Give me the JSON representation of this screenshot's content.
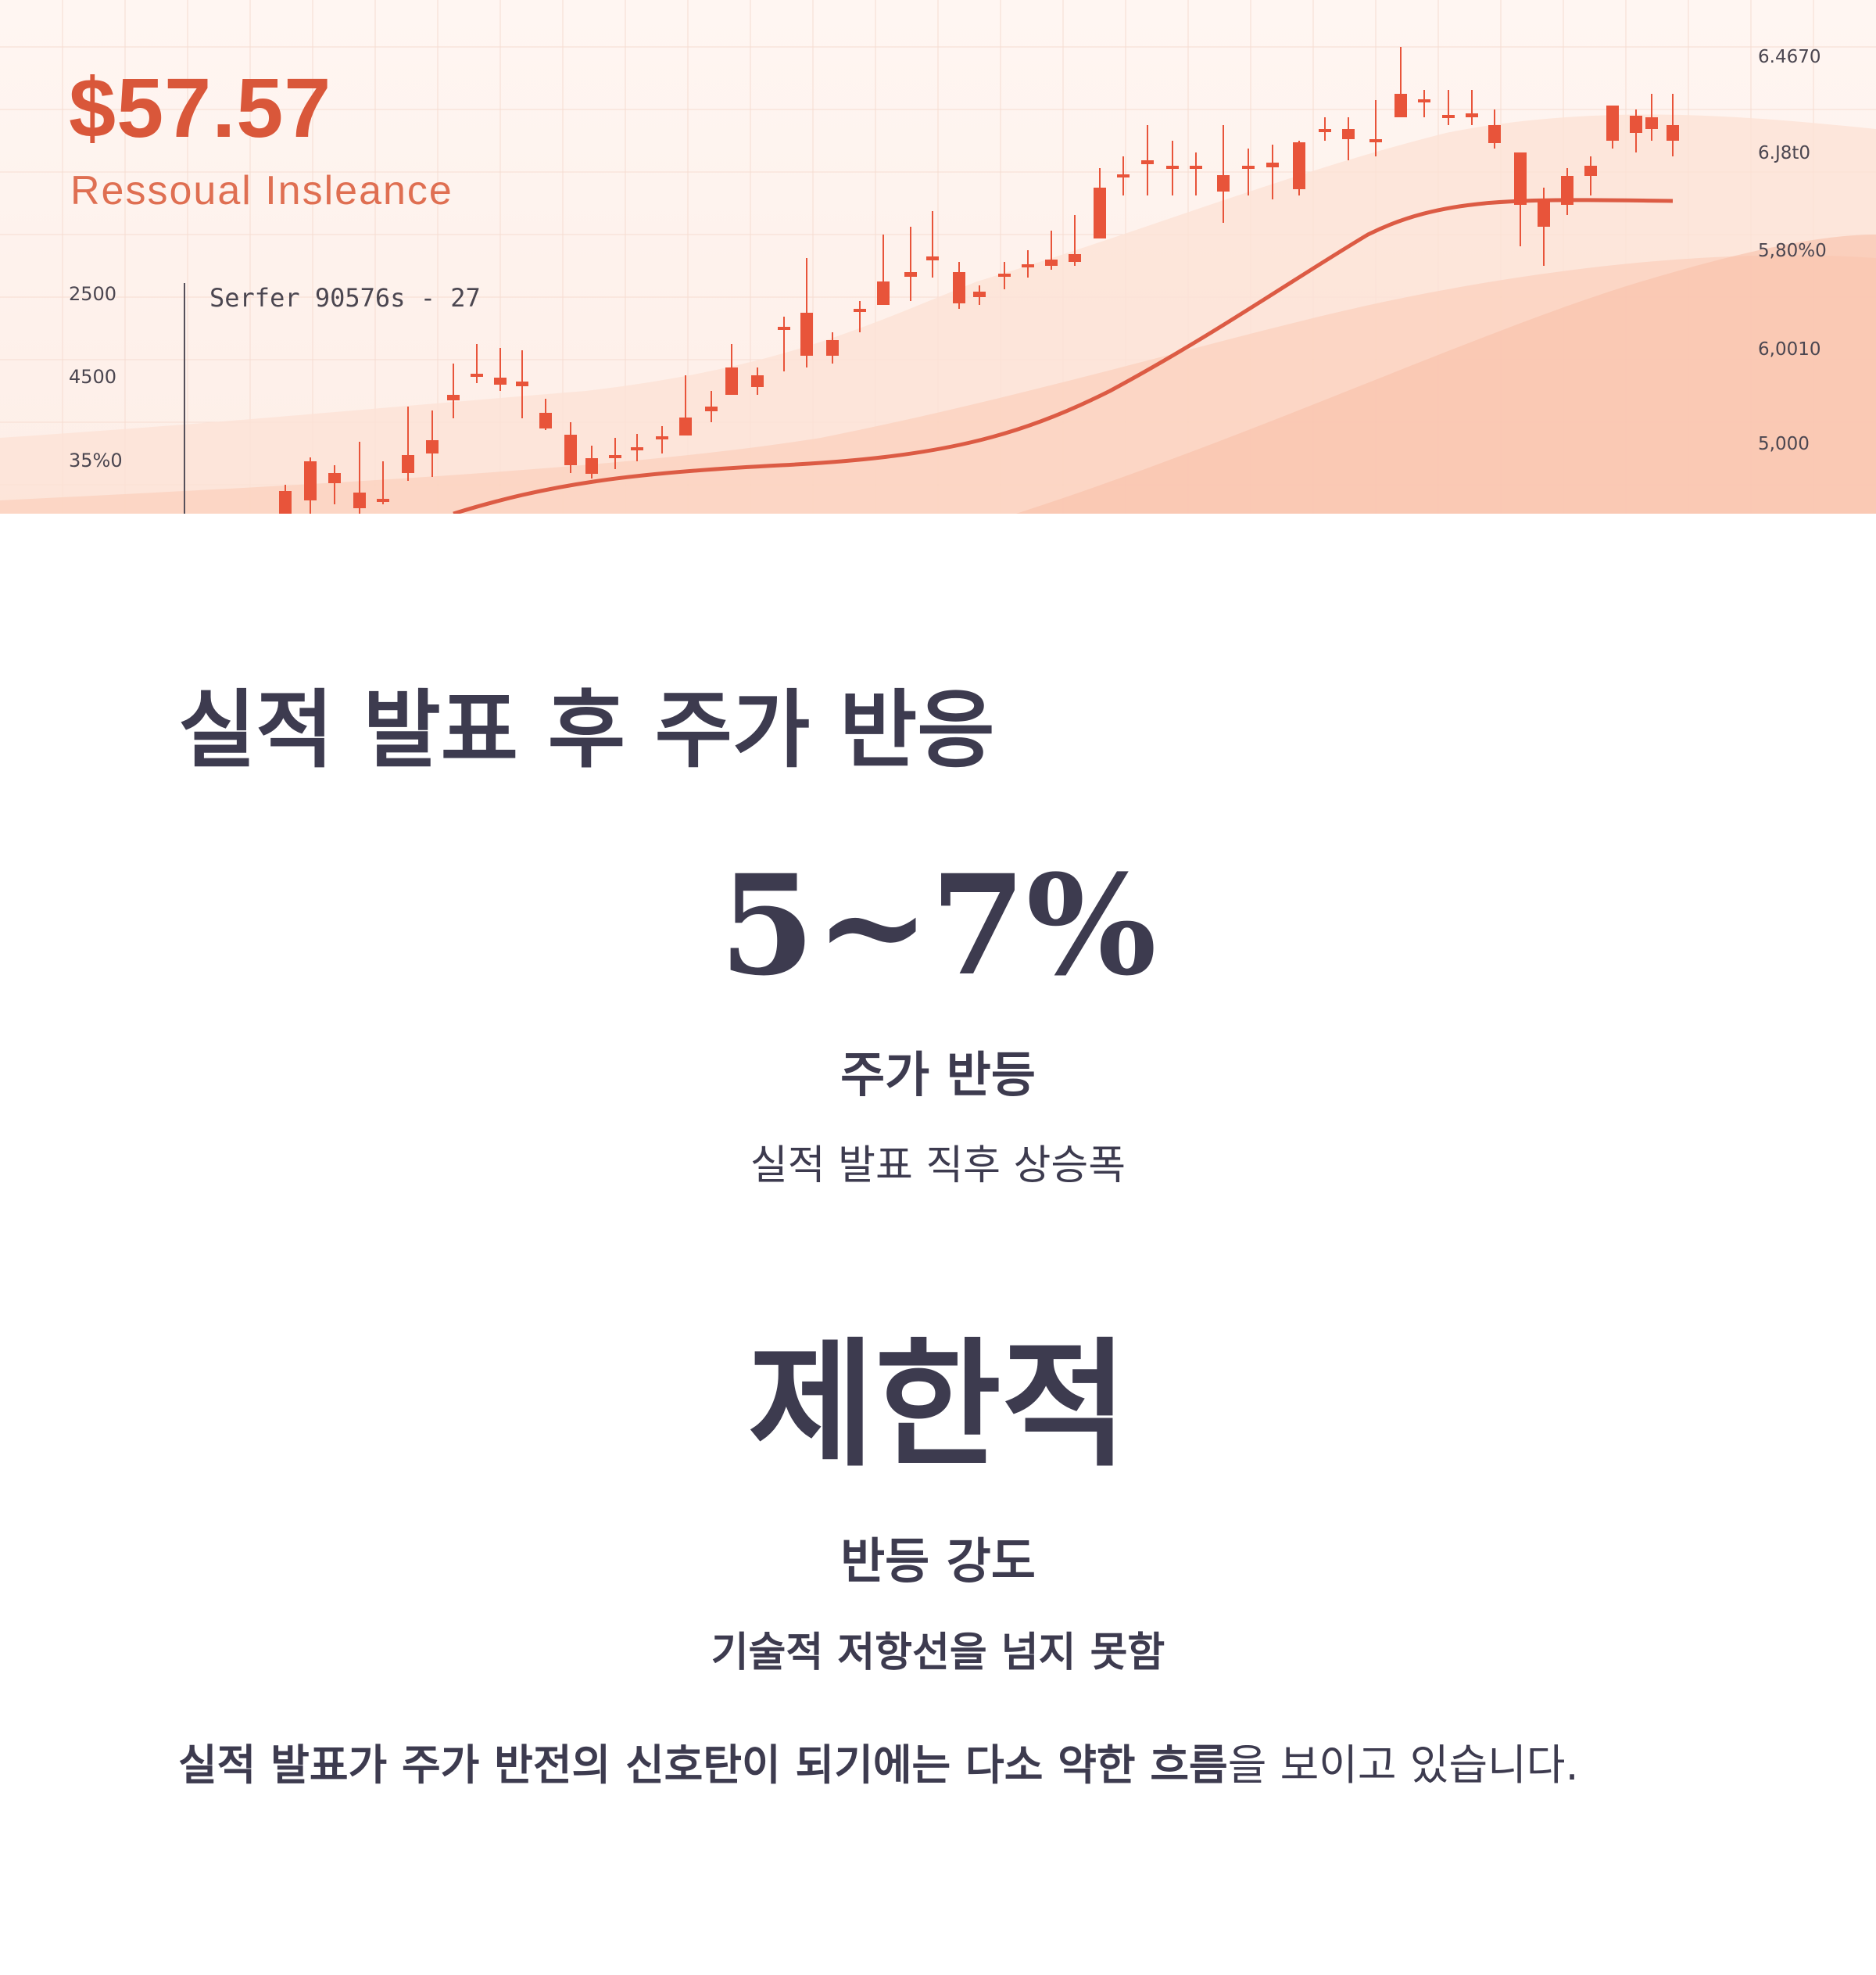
{
  "hero": {
    "price": "$57.57",
    "subtitle": "Ressoual Insleance",
    "note": "Serfer 90576s - 27",
    "left_ticks": [
      "2500",
      "4500",
      "35%0"
    ],
    "right_ticks": [
      "6.4670",
      "6.J8t0",
      "5,80%0",
      "6,0010",
      "5,000"
    ]
  },
  "heading": "실적 발표 후 주가 반응",
  "stats": [
    {
      "value": "5~7%",
      "label": "주가 반등",
      "desc": "실적 발표 직후 상승폭"
    },
    {
      "value": "제한적",
      "label": "반등 강도",
      "desc": "기술적 저항선을 넘지 못함"
    }
  ],
  "conclusion": {
    "bold": "실적 발표가 주가 반전의 신호탄이 되기에는 다소 약한 흐름",
    "rest": "을 보이고 있습니다."
  },
  "colors": {
    "accent": "#d9573a",
    "candle": "#e8543a",
    "text": "#3d3b4f",
    "hero_bg": "#fdeee7"
  }
}
